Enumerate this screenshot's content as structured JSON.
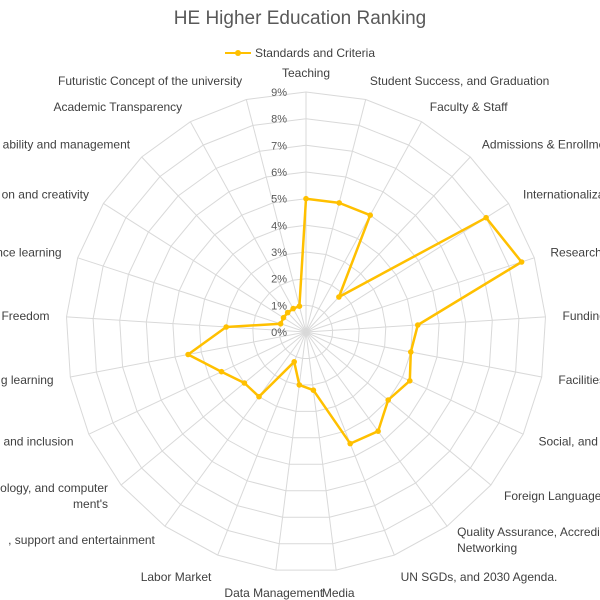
{
  "chart_data": {
    "type": "radar",
    "title": "HE Higher Education Ranking",
    "legend_position": "top",
    "grid": true,
    "rlim": [
      0,
      9
    ],
    "r_ticks": [
      "0%",
      "1%",
      "2%",
      "3%",
      "4%",
      "5%",
      "6%",
      "7%",
      "8%",
      "9%"
    ],
    "categories": [
      "Teaching",
      "Student Success, and Graduation",
      "Faculty & Staff",
      "Admissions & Enrollment",
      "Internationalization",
      "Research",
      "Funding,",
      "Facilities &",
      "Social, and Cu",
      "Foreign Language, a",
      "Quality Assurance, Accredita\nNetworking",
      "UN SGDs, and 2030 Agenda.",
      "Media",
      "Data Management",
      "Labor Market",
      ", support and entertainment",
      "ology, and computer\nment's",
      "and inclusion",
      "g learning",
      "Freedom",
      "nce learning",
      "on and creativity",
      "ability and management",
      "Academic Transparency",
      "Futuristic Concept of the university"
    ],
    "series": [
      {
        "name": "Standards and Criteria",
        "color": "#FFC000",
        "values": [
          5.0,
          5.0,
          5.0,
          1.8,
          8.0,
          8.5,
          4.2,
          4.0,
          4.3,
          4.0,
          4.6,
          4.5,
          2.2,
          2.0,
          1.2,
          3.0,
          3.0,
          3.5,
          4.5,
          3.0,
          1.0,
          1.0,
          1.0,
          1.0,
          1.0
        ]
      }
    ]
  }
}
